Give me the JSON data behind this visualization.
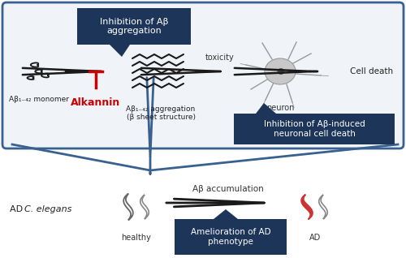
{
  "background_color": "#ffffff",
  "box_bg": "#1d3558",
  "box_text_color": "#ffffff",
  "red_color": "#cc0000",
  "arrow_color": "#1a1a1a",
  "upper_box_border": "#3a6090",
  "upper_box_fill": "#f0f4f8",
  "neuron_fill": "#c8c8c8",
  "neuron_stroke": "#999999",
  "worm_dark": "#555555",
  "worm_red": "#cc3333",
  "label_abeta_monomer": "Aβ₁₋₄₂ monomer",
  "label_abeta_aggregation": "Aβ₁₋₄₂ aggregation\n(β sheet structure)",
  "label_neuron": "neuron",
  "label_cell_death": "Cell death",
  "label_toxicity": "toxicity",
  "label_alkannin": "Alkannin",
  "label_inhibition_agg": "Inhibition of Aβ\naggregation",
  "label_inhibition_death": "Inhibition of Aβ-induced\nneuronal cell death",
  "label_ad_celegans": "AD C. elegans",
  "label_healthy": "healthy",
  "label_ad": "AD",
  "label_abeta_accum": "Aβ accumulation",
  "label_amelioration": "Amelioration of AD\nphenotype"
}
